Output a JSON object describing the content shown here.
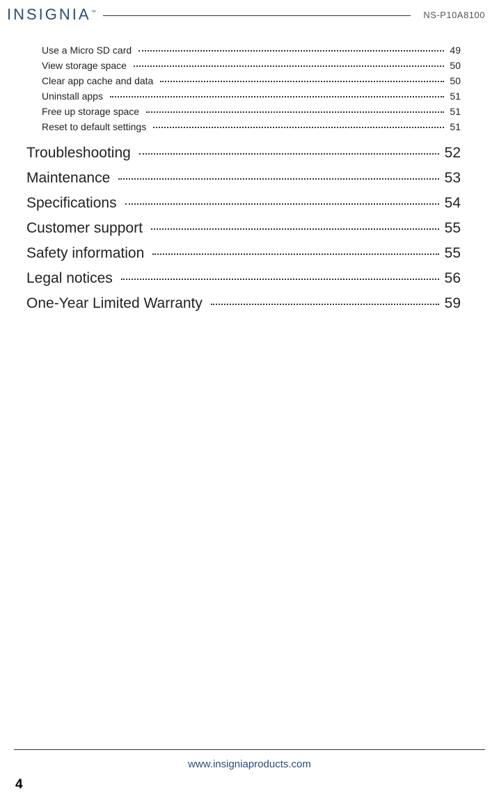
{
  "header": {
    "logo_text": "INSIGNIA",
    "model": "NS-P10A8100"
  },
  "toc": {
    "sub_items": [
      {
        "title": "Use a Micro SD card",
        "page": "49"
      },
      {
        "title": "View storage space",
        "page": "50"
      },
      {
        "title": "Clear app cache and data",
        "page": "50"
      },
      {
        "title": "Uninstall apps",
        "page": "51"
      },
      {
        "title": "Free up storage space",
        "page": "51"
      },
      {
        "title": "Reset to default settings",
        "page": "51"
      }
    ],
    "main_items": [
      {
        "title": "Troubleshooting",
        "page": "52"
      },
      {
        "title": "Maintenance",
        "page": "53"
      },
      {
        "title": "Specifications",
        "page": "54"
      },
      {
        "title": "Customer support",
        "page": "55"
      },
      {
        "title": "Safety information",
        "page": "55"
      },
      {
        "title": "Legal notices",
        "page": "56"
      },
      {
        "title": "One-Year Limited Warranty",
        "page": "59"
      }
    ]
  },
  "footer": {
    "url": "www.insigniaproducts.com",
    "page_number": "4"
  },
  "style": {
    "logo_color": "#2a4d7a",
    "text_color": "#222222",
    "rule_color": "#333333",
    "url_color": "#2a4d7a",
    "sub_fontsize": 14,
    "main_fontsize": 21,
    "background": "#ffffff"
  }
}
